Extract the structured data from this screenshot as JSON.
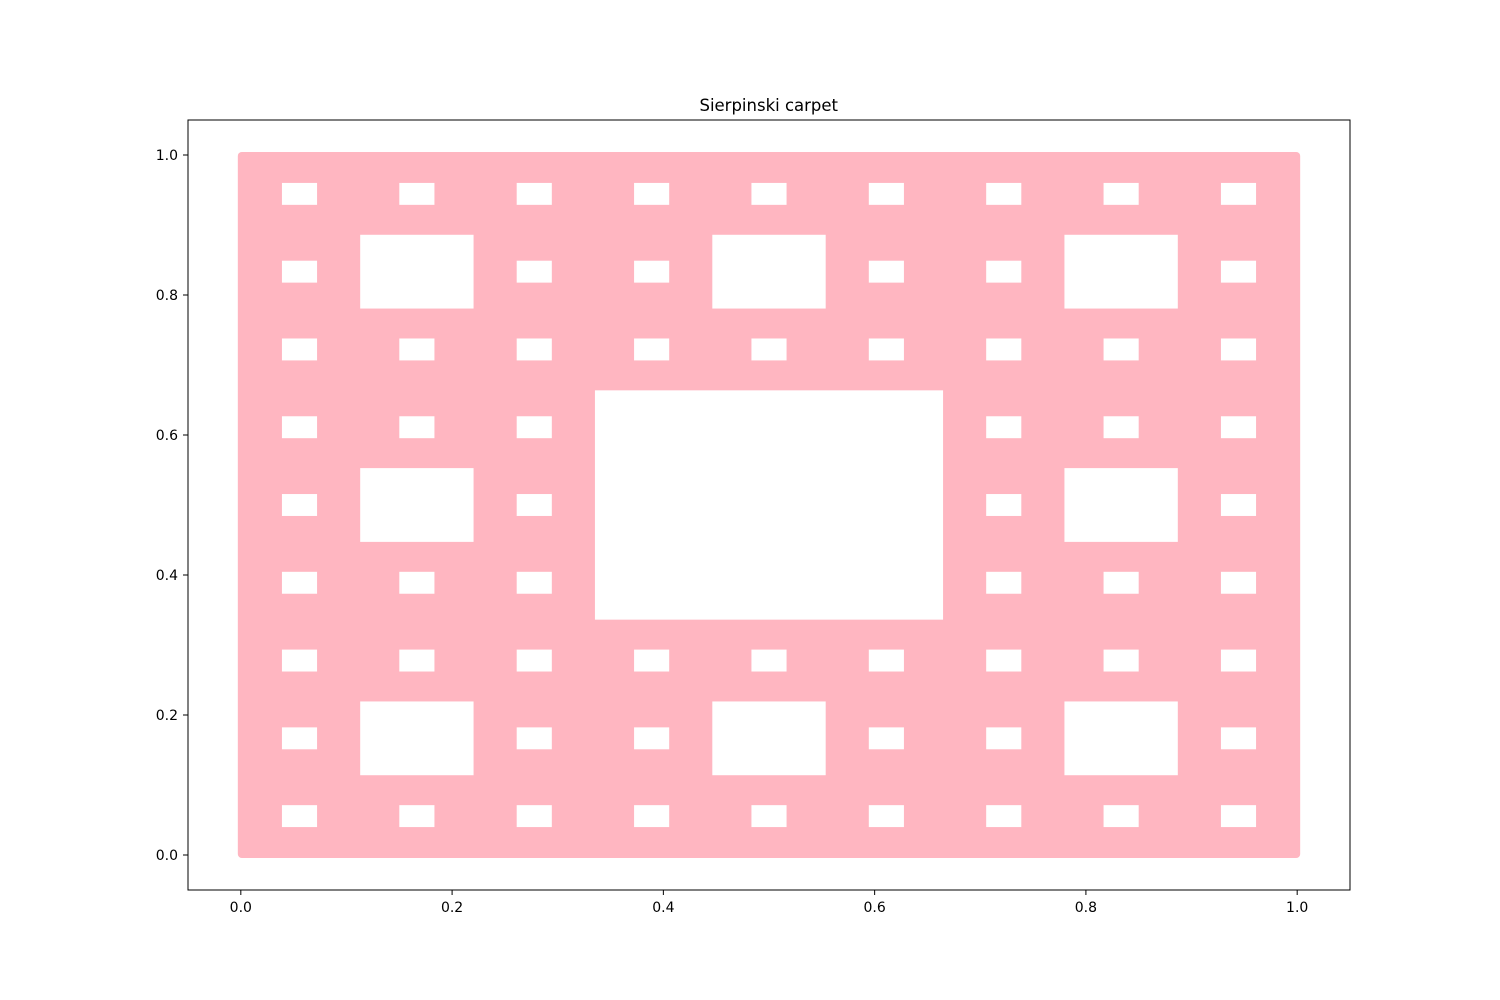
{
  "chart_data": {
    "type": "scatter",
    "title": "Sierpinski carpet",
    "xlabel": "",
    "ylabel": "",
    "xlim": [
      -0.05,
      1.05
    ],
    "ylim": [
      -0.05,
      1.05
    ],
    "xticks": [
      0.0,
      0.2,
      0.4,
      0.6,
      0.8,
      1.0
    ],
    "xtick_labels": [
      "0.0",
      "0.2",
      "0.4",
      "0.6",
      "0.8",
      "1.0"
    ],
    "yticks": [
      0.0,
      0.2,
      0.4,
      0.6,
      0.8,
      1.0
    ],
    "ytick_labels": [
      "0.0",
      "0.2",
      "0.4",
      "0.6",
      "0.8",
      "1.0"
    ],
    "grid": false,
    "legend": "none",
    "marker_color": "#ffb6c1",
    "fill_region": {
      "x": [
        0,
        1
      ],
      "y": [
        0,
        1
      ]
    },
    "fractal_depth": 3,
    "description_of_data": "Points filling the unit square minus recursively removed middle-ninths (Sierpinski carpet, 3 levels of holes)"
  }
}
